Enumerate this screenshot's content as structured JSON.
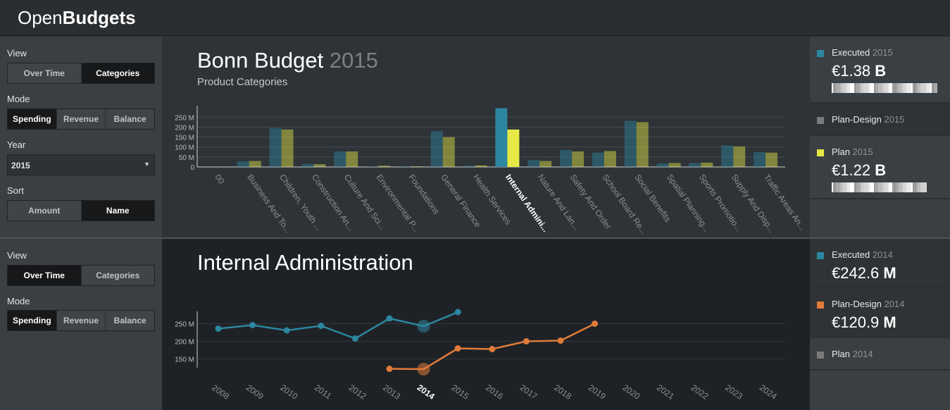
{
  "app": {
    "logo_light": "Open",
    "logo_bold": "Budgets"
  },
  "top_panel": {
    "controls": {
      "view_label": "View",
      "view_options": [
        "Over Time",
        "Categories"
      ],
      "view_selected": "Categories",
      "mode_label": "Mode",
      "mode_options": [
        "Spending",
        "Revenue",
        "Balance"
      ],
      "mode_selected": "Spending",
      "year_label": "Year",
      "year_value": "2015",
      "sort_label": "Sort",
      "sort_options": [
        "Amount",
        "Name"
      ],
      "sort_selected": "Name"
    },
    "title": "Bonn Budget",
    "title_year": "2015",
    "subtitle": "Product Categories",
    "legend": [
      {
        "name": "Executed",
        "year": "2015",
        "value": "€1.38",
        "unit": "B",
        "color": "#2d86a0"
      },
      {
        "name": "Plan-Design",
        "year": "2015",
        "color": "#7a7a7a"
      },
      {
        "name": "Plan",
        "year": "2015",
        "value": "€1.22",
        "unit": "B",
        "color": "#e6e845"
      }
    ]
  },
  "bottom_panel": {
    "controls": {
      "view_label": "View",
      "view_options": [
        "Over Time",
        "Categories"
      ],
      "view_selected": "Over Time",
      "mode_label": "Mode",
      "mode_options": [
        "Spending",
        "Revenue",
        "Balance"
      ],
      "mode_selected": "Spending"
    },
    "title": "Internal Administration",
    "legend": [
      {
        "name": "Executed",
        "year": "2014",
        "value": "€242.6",
        "unit": "M",
        "color": "#2d86a0"
      },
      {
        "name": "Plan-Design",
        "year": "2014",
        "value": "€120.9",
        "unit": "M",
        "color": "#e07b39"
      },
      {
        "name": "Plan",
        "year": "2014",
        "color": "#7a7a7a"
      }
    ]
  },
  "chart_data": [
    {
      "type": "bar",
      "ylim": [
        0,
        290
      ],
      "yticks": [
        0,
        50,
        100,
        150,
        200,
        250
      ],
      "ytick_labels": [
        "0",
        "50 M",
        "100 M",
        "150 M",
        "200 M",
        "250 M"
      ],
      "highlight_category": "Internal Admini...",
      "categories": [
        "00",
        "Business And To...",
        "Children, Youth ...",
        "Construction An...",
        "Culture And Sci...",
        "Environmental P...",
        "Foundations",
        "General Finance",
        "Health Services",
        "Internal Admini...",
        "Nature And Lan...",
        "Safety And Order",
        "School Board Re...",
        "Social Benefits",
        "Spatial Planning...",
        "Sports Promotio...",
        "Supply And Disp...",
        "Traffic Areas An..."
      ],
      "series": [
        {
          "name": "Executed",
          "color": "#2d86a0",
          "values": [
            0,
            28,
            195,
            15,
            78,
            2,
            3,
            180,
            6,
            295,
            35,
            85,
            72,
            232,
            18,
            20,
            108,
            75
          ]
        },
        {
          "name": "Plan",
          "color": "#e6e845",
          "values": [
            0,
            30,
            188,
            14,
            78,
            6,
            3,
            150,
            8,
            188,
            30,
            78,
            80,
            225,
            20,
            22,
            103,
            72
          ]
        }
      ]
    },
    {
      "type": "line",
      "x": [
        "2008",
        "2009",
        "2010",
        "2011",
        "2012",
        "2013",
        "2014",
        "2015",
        "2016",
        "2017",
        "2018",
        "2019",
        "2020",
        "2021",
        "2022",
        "2023",
        "2024"
      ],
      "highlight_x": "2014",
      "ylim": [
        125,
        285
      ],
      "yticks": [
        150,
        200,
        250
      ],
      "ytick_labels": [
        "150 M",
        "200 M",
        "250 M"
      ],
      "series": [
        {
          "name": "Executed",
          "color": "#2d86a0",
          "values": [
            236,
            246,
            231,
            244,
            208,
            265,
            243,
            283,
            null,
            null,
            null,
            null,
            null,
            null,
            null,
            null,
            null
          ]
        },
        {
          "name": "Plan-Design",
          "color": "#e07b39",
          "values": [
            null,
            null,
            null,
            null,
            null,
            122,
            121,
            180,
            178,
            200,
            202,
            250,
            null,
            null,
            null,
            null,
            null
          ]
        }
      ]
    }
  ]
}
